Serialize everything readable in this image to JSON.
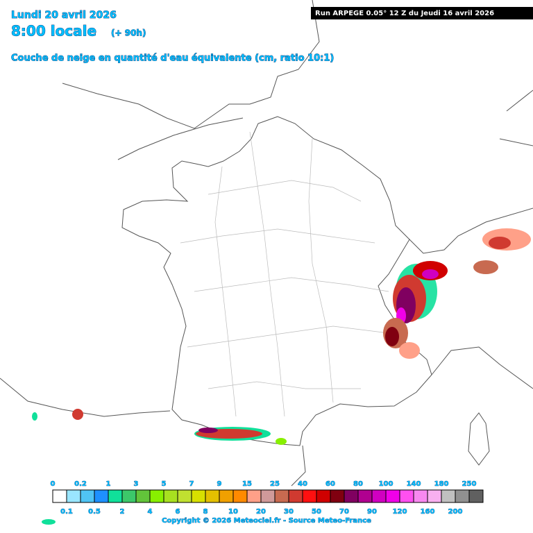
{
  "header": {
    "date": "Lundi 20 avril 2026",
    "time": "8:00 locale",
    "lead": "(+ 90h)",
    "title": "Couche de neige en quantité d'eau équivalente (cm, ratio 10:1)",
    "run": "Run ARPEGE 0.05° 12 Z du Jeudi 16 avril 2026"
  },
  "legend": {
    "labels": [
      "0",
      "0.1",
      "0.2",
      "0.5",
      "1",
      "2",
      "3",
      "4",
      "5",
      "6",
      "7",
      "8",
      "9",
      "10",
      "15",
      "20",
      "25",
      "30",
      "40",
      "50",
      "60",
      "70",
      "80",
      "90",
      "100",
      "120",
      "140",
      "160",
      "180",
      "200",
      "250"
    ],
    "colors": [
      "#ffffff",
      "#9ae6ff",
      "#50c4f4",
      "#1e90ff",
      "#10e09a",
      "#3cc86a",
      "#62c43a",
      "#88f000",
      "#a8e020",
      "#c0e030",
      "#d8e000",
      "#e4c000",
      "#f0a000",
      "#ff8a00",
      "#ffa088",
      "#d09a9a",
      "#c86a50",
      "#d03a30",
      "#ff1010",
      "#d00000",
      "#800010",
      "#800060",
      "#b00090",
      "#d000c0",
      "#f000e8",
      "#ff50f0",
      "#f888f0",
      "#f8b0f0",
      "#c0c0c0",
      "#909090",
      "#606060"
    ]
  },
  "footer": {
    "copyright": "Copyright © 2026 Meteociel.fr - Source Meteo-France"
  }
}
